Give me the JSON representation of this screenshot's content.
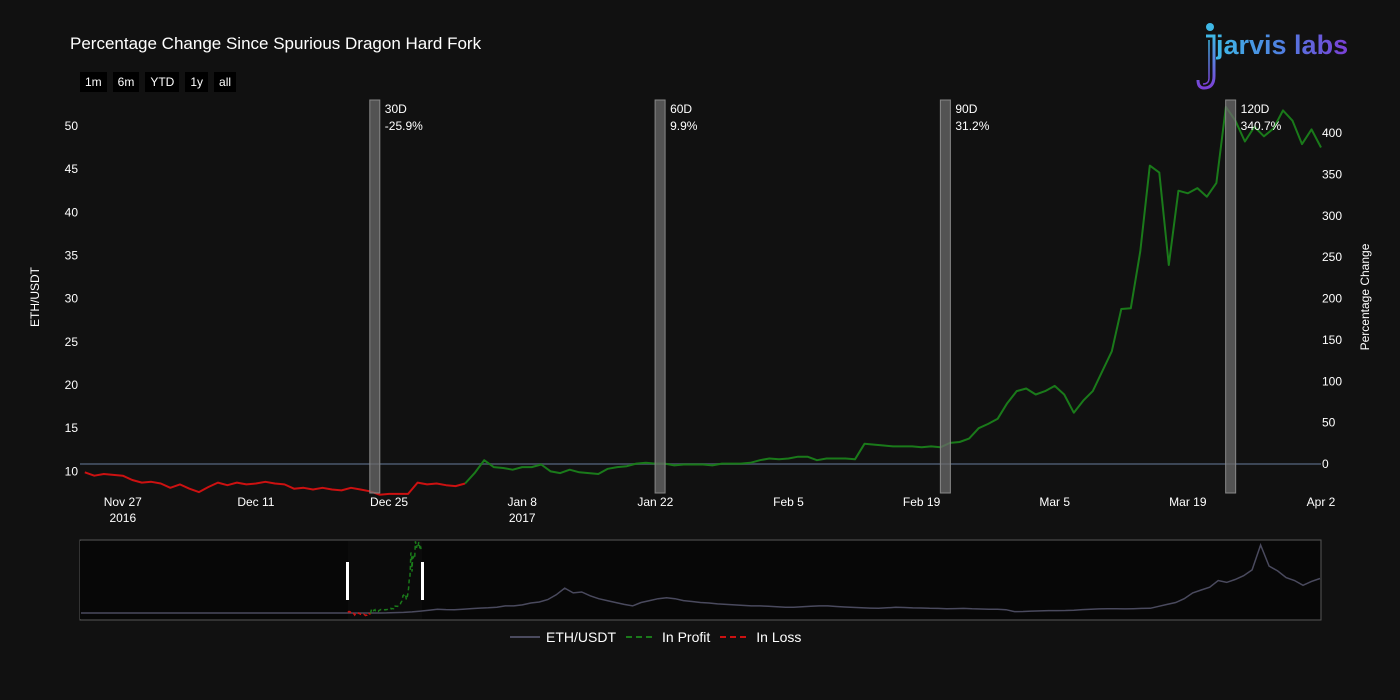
{
  "title": "Percentage Change Since Spurious Dragon Hard Fork",
  "range_buttons": [
    "1m",
    "6m",
    "YTD",
    "1y",
    "all"
  ],
  "logo_text": "jarvis labs",
  "legend": [
    {
      "label": "ETH/USDT",
      "color": "#4a4a5e",
      "dash": "solid"
    },
    {
      "label": "In Profit",
      "color": "#1a7a1a",
      "dash": "dashed"
    },
    {
      "label": "In Loss",
      "color": "#cc1111",
      "dash": "dashed"
    }
  ],
  "chart_data": {
    "type": "line",
    "title": "Percentage Change Since Spurious Dragon Hard Fork",
    "ylabel": "ETH/USDT",
    "y2label": "Percentage Change",
    "ylim": [
      7.5,
      53
    ],
    "y2lim": [
      -35,
      440
    ],
    "yticks": [
      10,
      15,
      20,
      25,
      30,
      35,
      40,
      45,
      50
    ],
    "y2ticks": [
      0,
      50,
      100,
      150,
      200,
      250,
      300,
      350,
      400
    ],
    "xticks": [
      {
        "day": 4,
        "label": "Nov 27",
        "sub": "2016"
      },
      {
        "day": 18,
        "label": "Dec 11",
        "sub": ""
      },
      {
        "day": 32,
        "label": "Dec 25",
        "sub": ""
      },
      {
        "day": 46,
        "label": "Jan 8",
        "sub": "2017"
      },
      {
        "day": 60,
        "label": "Jan 22",
        "sub": ""
      },
      {
        "day": 74,
        "label": "Feb 5",
        "sub": ""
      },
      {
        "day": 88,
        "label": "Feb 19",
        "sub": ""
      },
      {
        "day": 102,
        "label": "Mar 5",
        "sub": ""
      },
      {
        "day": 116,
        "label": "Mar 19",
        "sub": ""
      },
      {
        "day": 130,
        "label": "Apr 2",
        "sub": ""
      }
    ],
    "xlim_day": [
      -0.5,
      130
    ],
    "zero_line": 0,
    "series": [
      {
        "name": "In Loss",
        "color": "#cc1111",
        "points": [
          [
            0,
            9.9
          ],
          [
            1,
            9.5
          ],
          [
            2,
            9.7
          ],
          [
            3,
            9.6
          ],
          [
            4,
            9.5
          ],
          [
            5,
            9.0
          ],
          [
            6,
            8.7
          ],
          [
            7,
            8.8
          ],
          [
            8,
            8.6
          ],
          [
            9,
            8.1
          ],
          [
            10,
            8.5
          ],
          [
            11,
            8.0
          ],
          [
            12,
            7.6
          ],
          [
            13,
            8.2
          ],
          [
            14,
            8.7
          ],
          [
            15,
            8.4
          ],
          [
            16,
            8.7
          ],
          [
            17,
            8.5
          ],
          [
            18,
            8.6
          ],
          [
            19,
            8.8
          ],
          [
            20,
            8.6
          ],
          [
            21,
            8.5
          ],
          [
            22,
            8.0
          ],
          [
            23,
            8.1
          ],
          [
            24,
            7.9
          ],
          [
            25,
            8.1
          ],
          [
            26,
            7.9
          ],
          [
            27,
            7.8
          ],
          [
            28,
            8.1
          ],
          [
            29,
            7.9
          ],
          [
            30,
            7.7
          ],
          [
            31,
            7.3
          ],
          [
            32,
            7.4
          ],
          [
            33,
            7.4
          ],
          [
            34,
            7.4
          ],
          [
            35,
            8.7
          ],
          [
            36,
            8.5
          ],
          [
            37,
            8.6
          ],
          [
            38,
            8.4
          ],
          [
            39,
            8.3
          ],
          [
            40,
            8.6
          ]
        ]
      },
      {
        "name": "In Profit",
        "color": "#1a7a1a",
        "points": [
          [
            40,
            8.6
          ],
          [
            41,
            9.8
          ],
          [
            42,
            11.3
          ],
          [
            43,
            10.5
          ],
          [
            44,
            10.4
          ],
          [
            45,
            10.2
          ],
          [
            46,
            10.5
          ],
          [
            47,
            10.5
          ],
          [
            48,
            10.8
          ],
          [
            49,
            10.0
          ],
          [
            50,
            9.8
          ],
          [
            51,
            10.2
          ],
          [
            52,
            9.9
          ],
          [
            53,
            9.8
          ],
          [
            54,
            9.7
          ],
          [
            55,
            10.3
          ],
          [
            56,
            10.5
          ],
          [
            57,
            10.6
          ],
          [
            58,
            10.9
          ],
          [
            59,
            11.0
          ],
          [
            60,
            10.9
          ],
          [
            61,
            10.9
          ],
          [
            62,
            10.7
          ],
          [
            63,
            10.8
          ],
          [
            64,
            10.8
          ],
          [
            65,
            10.8
          ],
          [
            66,
            10.7
          ],
          [
            67,
            10.9
          ],
          [
            68,
            10.9
          ],
          [
            69,
            10.9
          ],
          [
            70,
            11.0
          ],
          [
            71,
            11.3
          ],
          [
            72,
            11.5
          ],
          [
            73,
            11.4
          ],
          [
            74,
            11.5
          ],
          [
            75,
            11.7
          ],
          [
            76,
            11.7
          ],
          [
            77,
            11.3
          ],
          [
            78,
            11.5
          ],
          [
            79,
            11.5
          ],
          [
            80,
            11.5
          ],
          [
            81,
            11.4
          ],
          [
            82,
            13.2
          ],
          [
            83,
            13.1
          ],
          [
            84,
            13.0
          ],
          [
            85,
            12.9
          ],
          [
            86,
            12.9
          ],
          [
            87,
            12.9
          ],
          [
            88,
            12.8
          ],
          [
            89,
            12.9
          ],
          [
            90,
            12.8
          ],
          [
            91,
            13.3
          ],
          [
            92,
            13.4
          ],
          [
            93,
            13.8
          ],
          [
            94,
            15.0
          ],
          [
            95,
            15.5
          ],
          [
            96,
            16.1
          ],
          [
            97,
            17.9
          ],
          [
            98,
            19.3
          ],
          [
            99,
            19.6
          ],
          [
            100,
            18.9
          ],
          [
            101,
            19.3
          ],
          [
            102,
            19.9
          ],
          [
            103,
            18.9
          ],
          [
            104,
            16.8
          ],
          [
            105,
            18.2
          ],
          [
            106,
            19.3
          ],
          [
            107,
            21.6
          ],
          [
            108,
            23.9
          ],
          [
            109,
            28.8
          ],
          [
            110,
            28.9
          ],
          [
            111,
            35.5
          ],
          [
            112,
            45.4
          ],
          [
            113,
            44.6
          ],
          [
            114,
            33.9
          ],
          [
            115,
            42.5
          ],
          [
            116,
            42.2
          ],
          [
            117,
            42.8
          ],
          [
            118,
            41.8
          ],
          [
            119,
            43.4
          ],
          [
            120,
            52.2
          ],
          [
            121,
            50.6
          ],
          [
            122,
            48.2
          ],
          [
            123,
            49.9
          ],
          [
            124,
            48.8
          ],
          [
            125,
            49.7
          ],
          [
            126,
            51.8
          ],
          [
            127,
            50.6
          ],
          [
            128,
            47.9
          ],
          [
            129,
            49.6
          ],
          [
            130,
            47.5
          ]
        ]
      }
    ],
    "annotations": [
      {
        "day": 30.5,
        "label": "30D",
        "value": "-25.9%"
      },
      {
        "day": 60.5,
        "label": "60D",
        "value": "9.9%"
      },
      {
        "day": 90.5,
        "label": "90D",
        "value": "31.2%"
      },
      {
        "day": 120.5,
        "label": "120D",
        "value": "340.7%"
      }
    ],
    "navigator": {
      "series_name": "ETH/USDT",
      "color": "#4a4a5e",
      "values": [
        1,
        1,
        1,
        1,
        1,
        1,
        1,
        1,
        1,
        1,
        1,
        1,
        1,
        1,
        1,
        1,
        1,
        1,
        1,
        1,
        1,
        1,
        1,
        1,
        1,
        1,
        1,
        1,
        1,
        1,
        1,
        1,
        1,
        1,
        1,
        1,
        1.2,
        1.5,
        1.7,
        2.2,
        3,
        4,
        5,
        4.6,
        4.5,
        5,
        5.6,
        6.2,
        6.5,
        7,
        8.5,
        8.5,
        9.5,
        11.5,
        12.5,
        15,
        20,
        27,
        22,
        23,
        19,
        16,
        14,
        12,
        10,
        8.5,
        12,
        14,
        16,
        17,
        16,
        14,
        13,
        12,
        11.5,
        10.5,
        10,
        9.5,
        9,
        8.5,
        8.5,
        8,
        7.5,
        7,
        7,
        7.5,
        8,
        8.5,
        8.5,
        7.8,
        7.3,
        6.9,
        6.5,
        6.2,
        6,
        6.5,
        7,
        6.8,
        6.4,
        6.3,
        6,
        5.8,
        5.5,
        5.6,
        5.8,
        5.4,
        5.2,
        5,
        4.9,
        4.5,
        2.5,
        2.6,
        3,
        3.2,
        3.5,
        3.5,
        3.6,
        4,
        4.6,
        5,
        5.3,
        5.5,
        5.5,
        5.3,
        5.5,
        5.8,
        6,
        8,
        10,
        12,
        16,
        22,
        25,
        28,
        35,
        33,
        36,
        40,
        46,
        72,
        50,
        45,
        38,
        35,
        30,
        34,
        37
      ]
    }
  }
}
